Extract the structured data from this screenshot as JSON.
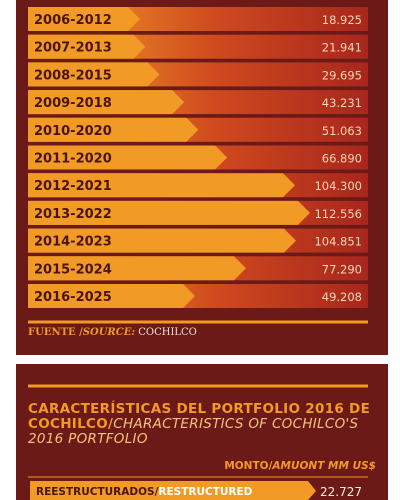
{
  "chart_data": [
    {
      "type": "bar",
      "orientation": "horizontal",
      "categories": [
        "2006-2012",
        "2007-2013",
        "2008-2015",
        "2009-2018",
        "2010-2020",
        "2011-2020",
        "2012-2021",
        "2013-2022",
        "2014-2023",
        "2015-2024",
        "2016-2025"
      ],
      "values": [
        18925,
        21941,
        29695,
        43231,
        51063,
        66890,
        104300,
        112556,
        104851,
        77290,
        49208
      ],
      "value_labels": [
        "18.925",
        "21.941",
        "29.695",
        "43.231",
        "51.063",
        "66.890",
        "104.300",
        "112.556",
        "104.851",
        "77.290",
        "49.208"
      ],
      "xlim": [
        0,
        112556
      ],
      "grid": false,
      "colors": {
        "bar": "#f29a26",
        "bar_dark": "#a8261c",
        "panel": "#6b1a17",
        "label_text": "#4a1410",
        "value_text": "#f6d7b8"
      }
    },
    {
      "type": "bar",
      "orientation": "horizontal",
      "categories": [
        "REESTRUCTURADOS/RESTRUCTURED"
      ],
      "values": [
        22727
      ],
      "value_labels": [
        "22.727"
      ],
      "colors": {
        "bar": "#f29a26",
        "panel": "#6b1a17"
      }
    }
  ],
  "source": {
    "label_es": "FUENTE /",
    "label_en": "SOURCE:",
    "value": "COCHILCO"
  },
  "portfolio": {
    "title_es": "CARACTERÍSTICAS DEL PORTFOLIO 2016 DE COCHILCO/",
    "title_en": "CHARACTERISTICS OF COCHILCO'S 2016 PORTFOLIO",
    "unit_es": "MONTO/",
    "unit_en": "AMUONT MM US$",
    "row_label_es": "REESTRUCTURADOS",
    "row_label_sep": "/",
    "row_label_en": "RESTRUCTURED",
    "row_value": "22.727"
  }
}
